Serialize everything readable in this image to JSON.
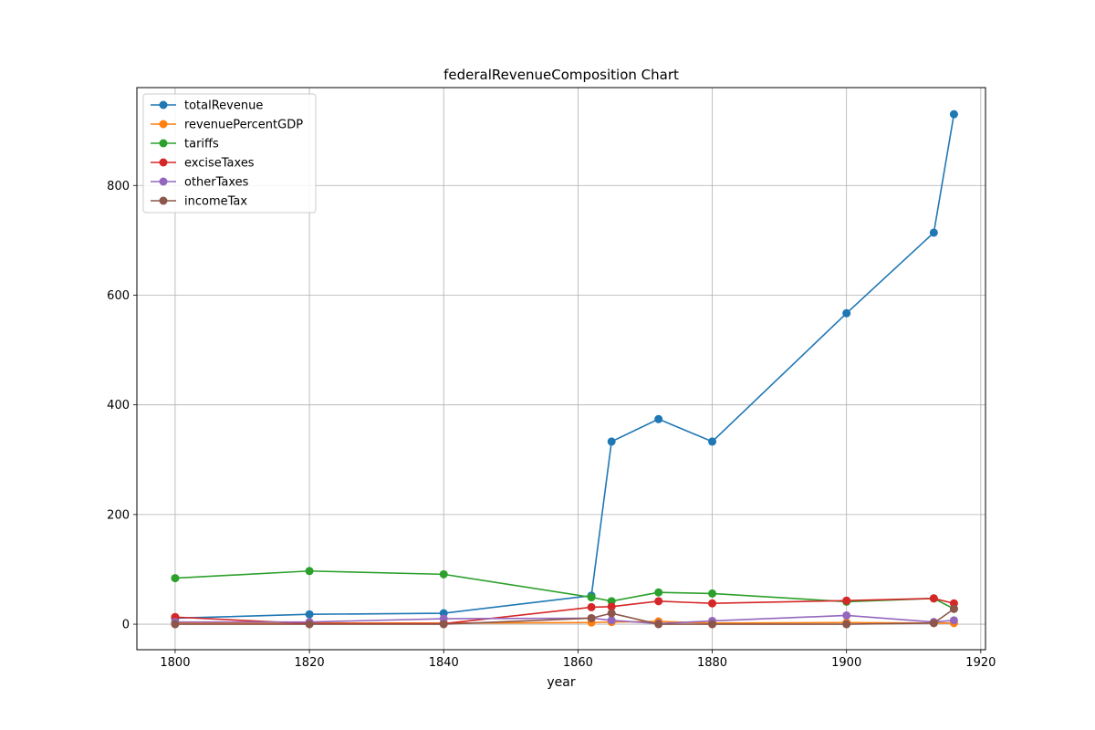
{
  "chart_data": {
    "type": "line",
    "title": "federalRevenueComposition Chart",
    "xlabel": "year",
    "ylabel": "",
    "xlim": [
      1794.3,
      1920.7
    ],
    "ylim": [
      -46.5,
      978.5
    ],
    "xticks": [
      1800,
      1820,
      1840,
      1860,
      1880,
      1900,
      1920
    ],
    "yticks": [
      0,
      200,
      400,
      600,
      800
    ],
    "grid": true,
    "legend_position": "top-left",
    "x": [
      1800,
      1820,
      1840,
      1862,
      1865,
      1872,
      1880,
      1900,
      1913,
      1916
    ],
    "series": [
      {
        "name": "totalRevenue",
        "color": "#1f77b4",
        "values": [
          11,
          18,
          20,
          52,
          333,
          374,
          333,
          567,
          714,
          930
        ]
      },
      {
        "name": "revenuePercentGDP",
        "color": "#ff7f0e",
        "values": [
          2,
          2,
          2,
          3,
          4,
          5,
          2,
          3,
          2,
          2
        ]
      },
      {
        "name": "tariffs",
        "color": "#2ca02c",
        "values": [
          84,
          97,
          91,
          49,
          42,
          58,
          56,
          41,
          47,
          28
        ]
      },
      {
        "name": "exciseTaxes",
        "color": "#d62728",
        "values": [
          13,
          1,
          1,
          31,
          32,
          42,
          38,
          43,
          47,
          38
        ]
      },
      {
        "name": "otherTaxes",
        "color": "#9467bd",
        "values": [
          4,
          4,
          10,
          11,
          7,
          1,
          6,
          16,
          4,
          7
        ]
      },
      {
        "name": "incomeTax",
        "color": "#8c564b",
        "values": [
          0,
          0,
          0,
          11,
          20,
          0,
          0,
          0,
          2,
          28
        ]
      }
    ]
  }
}
